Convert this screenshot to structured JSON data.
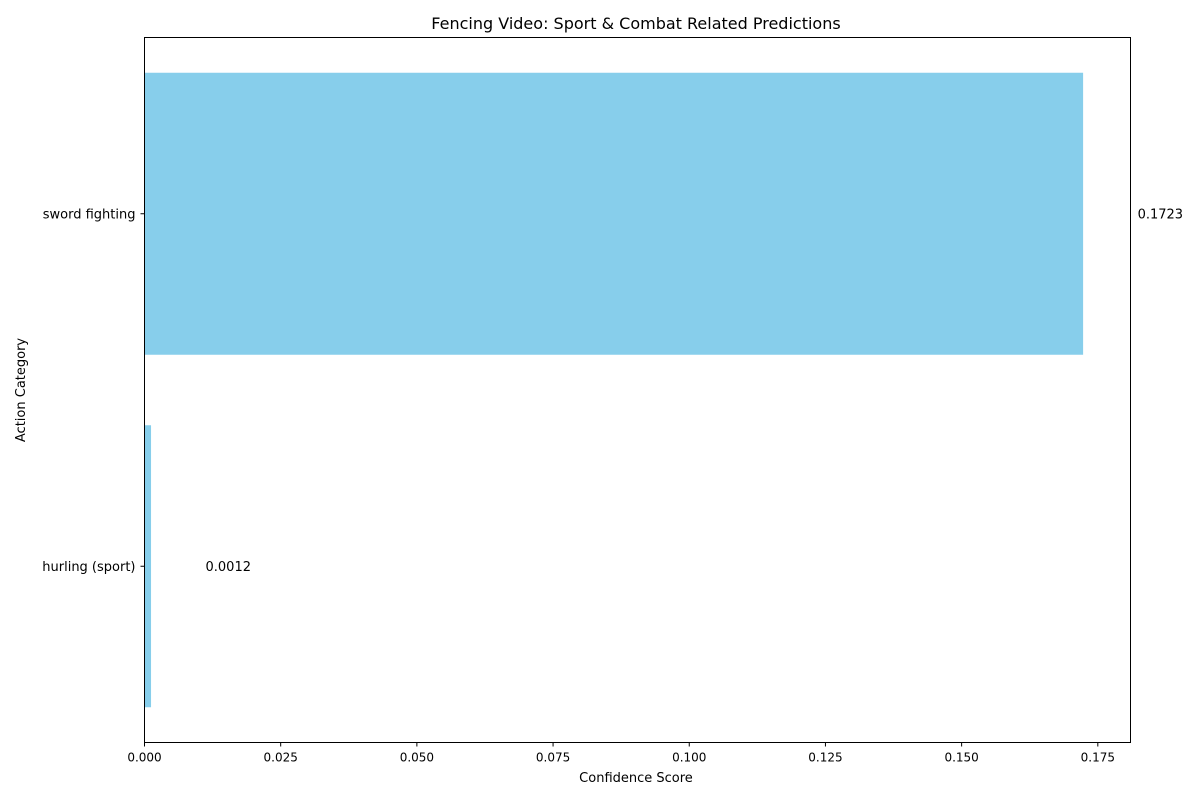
{
  "chart_data": {
    "type": "bar",
    "orientation": "horizontal",
    "title": "Fencing Video: Sport & Combat Related Predictions",
    "xlabel": "Confidence Score",
    "ylabel": "Action Category",
    "categories": [
      "sword fighting",
      "hurling (sport)"
    ],
    "values": [
      0.1723,
      0.0012
    ],
    "data_labels": [
      "0.1723",
      "0.0012"
    ],
    "xlim": [
      0,
      0.181
    ],
    "xticks": [
      0.0,
      0.025,
      0.05,
      0.075,
      0.1,
      0.125,
      0.15,
      0.175
    ],
    "xtick_labels": [
      "0.000",
      "0.025",
      "0.050",
      "0.075",
      "0.100",
      "0.125",
      "0.150",
      "0.175"
    ],
    "grid": false,
    "legend": "none",
    "bar_color": "#87CEEB"
  }
}
